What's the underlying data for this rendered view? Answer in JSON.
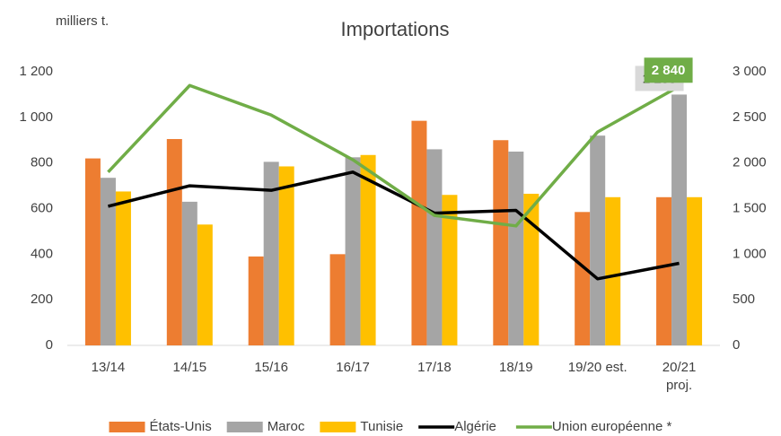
{
  "chart_data": {
    "type": "bar",
    "title": "Importations",
    "y_label": "milliers t.",
    "categories": [
      "13/14",
      "14/15",
      "15/16",
      "16/17",
      "17/18",
      "18/19",
      "19/20 est.",
      "20/21\nproj."
    ],
    "series": [
      {
        "name": "États-Unis",
        "type": "bar",
        "color": "#ed7d31",
        "values": [
          820,
          905,
          390,
          400,
          985,
          900,
          585,
          650
        ]
      },
      {
        "name": "Maroc",
        "type": "bar",
        "color": "#a5a5a5",
        "values": [
          735,
          630,
          805,
          825,
          860,
          850,
          920,
          1100
        ],
        "value_labels": [
          null,
          null,
          null,
          null,
          null,
          null,
          null,
          "1 100"
        ],
        "label_color": "#d9d9d9",
        "label_text_color": "#404040"
      },
      {
        "name": "Tunisie",
        "type": "bar",
        "color": "#ffc000",
        "values": [
          675,
          530,
          785,
          835,
          660,
          665,
          650,
          650
        ]
      },
      {
        "name": "Algérie",
        "type": "line",
        "axis": "y2",
        "color": "#000000",
        "values": [
          1525,
          1750,
          1700,
          1900,
          1450,
          1480,
          730,
          900
        ]
      },
      {
        "name": "Union européenne *",
        "type": "line",
        "axis": "y2",
        "color": "#70ad47",
        "values": [
          1900,
          2850,
          2525,
          2035,
          1425,
          1310,
          2340,
          2840
        ],
        "value_labels": [
          null,
          null,
          null,
          null,
          null,
          null,
          null,
          "2 840"
        ],
        "label_color": "#70ad47",
        "label_text_color": "#ffffff"
      }
    ],
    "ylim": [
      0,
      1200
    ],
    "yticks": [
      0,
      200,
      400,
      600,
      800,
      {
        "value": 1000,
        "label": "1 000"
      },
      {
        "value": 1200,
        "label": "1 200"
      }
    ],
    "y2lim": [
      0,
      3000
    ],
    "y2ticks": [
      0,
      500,
      {
        "value": 1000,
        "label": "1 000"
      },
      {
        "value": 1500,
        "label": "1 500"
      },
      {
        "value": 2000,
        "label": "2 000"
      },
      {
        "value": 2500,
        "label": "2 500"
      },
      {
        "value": 3000,
        "label": "3 000"
      }
    ],
    "grid": false
  }
}
